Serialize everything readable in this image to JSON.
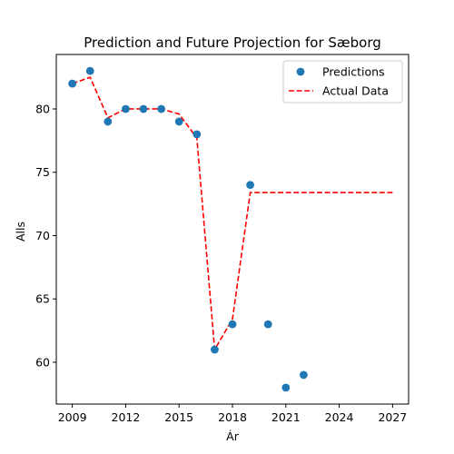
{
  "chart_data": {
    "type": "scatter",
    "title": "Prediction and Future Projection for Sæborg",
    "xlabel": "Ár",
    "ylabel": "Alls",
    "xlim": [
      2008.1,
      2027.9
    ],
    "ylim": [
      56.7,
      84.3
    ],
    "xticks": [
      2009,
      2012,
      2015,
      2018,
      2021,
      2024,
      2027
    ],
    "yticks": [
      60,
      65,
      70,
      75,
      80
    ],
    "grid": false,
    "legend_position": "top-right",
    "series": [
      {
        "name": "Predictions",
        "kind": "scatter",
        "color": "#1f77b4",
        "x": [
          2009,
          2010,
          2011,
          2012,
          2013,
          2014,
          2015,
          2016,
          2017,
          2018,
          2019,
          2020,
          2021,
          2022
        ],
        "y": [
          82,
          83,
          79,
          80,
          80,
          80,
          79,
          78,
          61,
          63,
          74,
          63,
          58,
          59
        ]
      },
      {
        "name": "Actual Data",
        "kind": "line",
        "style": "dashed",
        "color": "#ff0000",
        "x": [
          2009,
          2010,
          2011,
          2012,
          2013,
          2014,
          2015,
          2016,
          2017,
          2018,
          2019,
          2020,
          2021,
          2022,
          2023,
          2024,
          2025,
          2026,
          2027
        ],
        "y": [
          82,
          82.5,
          79.3,
          80,
          80,
          80,
          79.6,
          77.7,
          61,
          63.4,
          73.4,
          73.4,
          73.4,
          73.4,
          73.4,
          73.4,
          73.4,
          73.4,
          73.4
        ]
      }
    ]
  }
}
